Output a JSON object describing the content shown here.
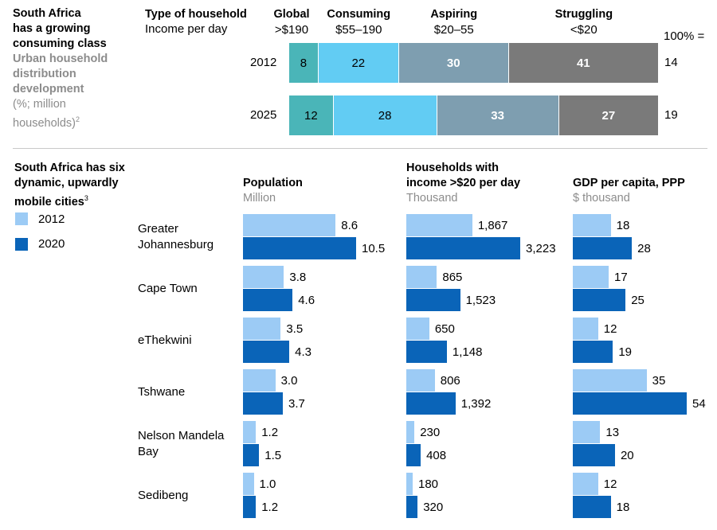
{
  "title": {
    "line1": "South Africa",
    "line2": "has a growing",
    "line3": "consuming class",
    "sub1": "Urban household",
    "sub2": "distribution",
    "sub3": "development",
    "unit1": "(%; million",
    "unit2": "households)",
    "footnote_mark": "2"
  },
  "household_header": {
    "type_label": "Type of household",
    "income_label": "Income per day",
    "total_label": "100% ="
  },
  "chart_data": [
    {
      "type": "stacked-bar-horizontal",
      "title": "Urban household distribution development",
      "unit": "%; million households",
      "categories": [
        {
          "name": "Global",
          "income": ">$190",
          "color": "#4ab5b8",
          "text_color": "#000000"
        },
        {
          "name": "Consuming",
          "income": "$55–190",
          "color": "#62ccf3",
          "text_color": "#000000"
        },
        {
          "name": "Aspiring",
          "income": "$20–55",
          "color": "#7e9eb0",
          "text_color": "#ffffff"
        },
        {
          "name": "Struggling",
          "income": "<$20",
          "color": "#7a7a7a",
          "text_color": "#ffffff"
        }
      ],
      "rows": [
        {
          "year": "2012",
          "values": [
            8,
            22,
            30,
            41
          ],
          "total": "14"
        },
        {
          "year": "2025",
          "values": [
            12,
            28,
            33,
            27
          ],
          "total": "19"
        }
      ]
    },
    {
      "type": "grouped-bar-horizontal",
      "title": "South Africa has six dynamic, upwardly mobile cities",
      "series_names": [
        "2012",
        "2020"
      ],
      "colors": {
        "s2012": "#9ccbf5",
        "s2020": "#0a64b8"
      },
      "cities": [
        {
          "name_lines": [
            "Greater",
            "Johannesburg"
          ]
        },
        {
          "name_lines": [
            "Cape Town"
          ]
        },
        {
          "name_lines": [
            "eThekwini"
          ]
        },
        {
          "name_lines": [
            "Tshwane"
          ]
        },
        {
          "name_lines": [
            "Nelson Mandela",
            "Bay"
          ]
        },
        {
          "name_lines": [
            "Sedibeng"
          ]
        }
      ],
      "panels": [
        {
          "key": "population",
          "title_lines": [
            "Population"
          ],
          "unit": "Million",
          "max": 10.5,
          "values_2012": [
            8.6,
            3.8,
            3.5,
            3.0,
            1.2,
            1.0
          ],
          "values_2020": [
            10.5,
            4.6,
            4.3,
            3.7,
            1.5,
            1.2
          ],
          "labels_2012": [
            "8.6",
            "3.8",
            "3.5",
            "3.0",
            "1.2",
            "1.0"
          ],
          "labels_2020": [
            "10.5",
            "4.6",
            "4.3",
            "3.7",
            "1.5",
            "1.2"
          ]
        },
        {
          "key": "households",
          "title_lines": [
            "Households with",
            "income >$20 per day"
          ],
          "unit": "Thousand",
          "max": 3223,
          "values_2012": [
            1867,
            865,
            650,
            806,
            230,
            180
          ],
          "values_2020": [
            3223,
            1523,
            1148,
            1392,
            408,
            320
          ],
          "labels_2012": [
            "1,867",
            "865",
            "650",
            "806",
            "230",
            "180"
          ],
          "labels_2020": [
            "3,223",
            "1,523",
            "1,148",
            "1,392",
            "408",
            "320"
          ]
        },
        {
          "key": "gdp",
          "title_lines": [
            "GDP per capita, PPP"
          ],
          "unit": "$ thousand",
          "max": 54,
          "values_2012": [
            18,
            17,
            12,
            35,
            13,
            12
          ],
          "values_2020": [
            28,
            25,
            19,
            54,
            20,
            18
          ],
          "labels_2012": [
            "18",
            "17",
            "12",
            "35",
            "13",
            "12"
          ],
          "labels_2020": [
            "28",
            "25",
            "19",
            "54",
            "20",
            "18"
          ]
        }
      ]
    }
  ],
  "cities_header": {
    "line1": "South Africa has six",
    "line2": "dynamic, upwardly",
    "line3": "mobile cities",
    "footnote_mark": "3"
  }
}
